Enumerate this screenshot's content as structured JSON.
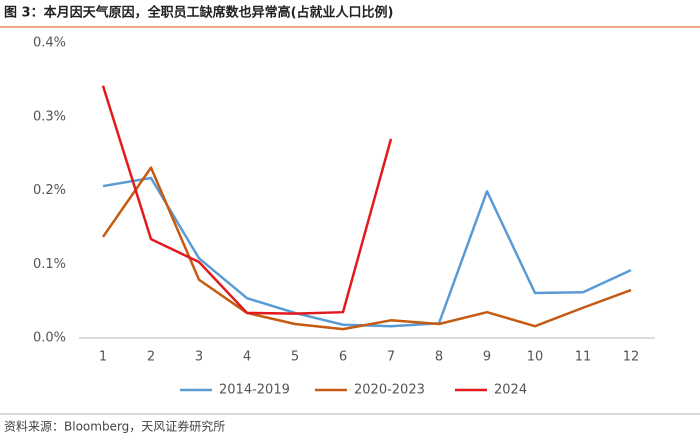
{
  "chart_data": {
    "type": "line",
    "title": "图 3：本月因天气原因，全职员工缺席数也异常高(占就业人口比例)",
    "source": "资料来源：Bloomberg，天风证券研究所",
    "categories": [
      "1",
      "2",
      "3",
      "4",
      "5",
      "6",
      "7",
      "8",
      "9",
      "10",
      "11",
      "12"
    ],
    "series": [
      {
        "name": "2014-2019",
        "color": "#5b9bd5",
        "values": [
          0.206,
          0.217,
          0.108,
          0.054,
          0.034,
          0.018,
          0.016,
          0.02,
          0.199,
          0.061,
          0.062,
          0.092
        ]
      },
      {
        "name": "2020-2023",
        "color": "#c55a11",
        "values": [
          0.137,
          0.231,
          0.079,
          0.034,
          0.019,
          0.012,
          0.024,
          0.019,
          0.035,
          0.016,
          0.041,
          0.065
        ]
      },
      {
        "name": "2024",
        "color": "#e31a1c",
        "values": [
          0.342,
          0.134,
          0.103,
          0.034,
          0.033,
          0.035,
          0.27,
          null,
          null,
          null,
          null,
          null
        ]
      }
    ],
    "ylim": [
      0,
      0.4
    ],
    "yticks": [
      {
        "value": 0,
        "label": "0.0%"
      },
      {
        "value": 0.1,
        "label": "0.1%"
      },
      {
        "value": 0.2,
        "label": "0.2%"
      },
      {
        "value": 0.3,
        "label": "0.3%"
      },
      {
        "value": 0.4,
        "label": "0.4%"
      }
    ],
    "grid": false,
    "legend": "bottom"
  }
}
